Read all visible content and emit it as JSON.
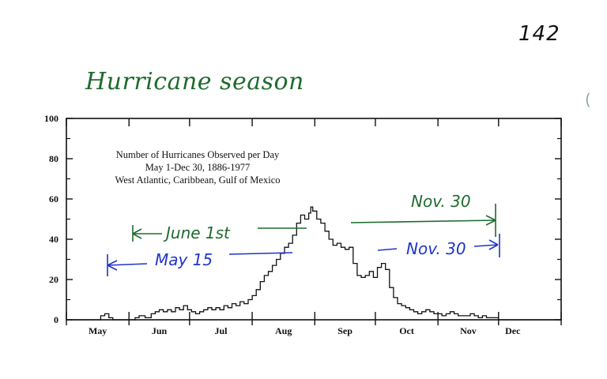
{
  "page_number": "142",
  "handwritten_title": "Hurricane season",
  "chart_data": {
    "type": "line",
    "title_lines": [
      "Number of Hurricanes Observed per Day",
      "May 1-Dec 30, 1886-1977",
      "West Atlantic, Caribbean, Gulf of Mexico"
    ],
    "xlabel": "",
    "ylabel": "",
    "x_start": "May 1",
    "x_unit": "day of season",
    "xlim": [
      0,
      245
    ],
    "ylim": [
      0,
      100
    ],
    "y_ticks": [
      0,
      20,
      40,
      60,
      80,
      100
    ],
    "y_tick_labels": [
      "0",
      "20",
      "40",
      "60",
      "80",
      "100"
    ],
    "month_labels": [
      "May",
      "Jun",
      "Jul",
      "Aug",
      "Sep",
      "Oct",
      "Nov",
      "Dec"
    ],
    "month_boundaries": [
      0,
      31,
      61,
      92,
      123,
      153,
      184,
      214,
      245
    ],
    "series": [
      {
        "name": "",
        "points": [
          [
            0,
            0
          ],
          [
            15,
            0
          ],
          [
            17,
            2
          ],
          [
            19,
            3
          ],
          [
            21,
            1
          ],
          [
            23,
            0
          ],
          [
            31,
            0
          ],
          [
            34,
            1
          ],
          [
            36,
            2
          ],
          [
            39,
            1
          ],
          [
            42,
            3
          ],
          [
            44,
            4
          ],
          [
            46,
            5
          ],
          [
            48,
            4
          ],
          [
            50,
            5
          ],
          [
            52,
            4
          ],
          [
            54,
            6
          ],
          [
            56,
            5
          ],
          [
            58,
            7
          ],
          [
            60,
            5
          ],
          [
            62,
            4
          ],
          [
            64,
            3
          ],
          [
            66,
            4
          ],
          [
            68,
            5
          ],
          [
            70,
            6
          ],
          [
            72,
            5
          ],
          [
            74,
            6
          ],
          [
            76,
            5
          ],
          [
            78,
            7
          ],
          [
            80,
            6
          ],
          [
            82,
            8
          ],
          [
            84,
            7
          ],
          [
            86,
            9
          ],
          [
            88,
            8
          ],
          [
            90,
            10
          ],
          [
            92,
            12
          ],
          [
            94,
            15
          ],
          [
            96,
            19
          ],
          [
            98,
            22
          ],
          [
            100,
            24
          ],
          [
            102,
            27
          ],
          [
            104,
            30
          ],
          [
            106,
            33
          ],
          [
            108,
            36
          ],
          [
            110,
            38
          ],
          [
            112,
            42
          ],
          [
            114,
            48
          ],
          [
            116,
            52
          ],
          [
            118,
            50
          ],
          [
            120,
            53
          ],
          [
            121,
            56
          ],
          [
            122,
            54
          ],
          [
            124,
            50
          ],
          [
            126,
            48
          ],
          [
            128,
            44
          ],
          [
            130,
            40
          ],
          [
            132,
            37
          ],
          [
            134,
            38
          ],
          [
            136,
            36
          ],
          [
            138,
            35
          ],
          [
            140,
            36
          ],
          [
            142,
            28
          ],
          [
            144,
            22
          ],
          [
            146,
            21
          ],
          [
            148,
            22
          ],
          [
            150,
            24
          ],
          [
            152,
            21
          ],
          [
            154,
            26
          ],
          [
            156,
            28
          ],
          [
            158,
            25
          ],
          [
            160,
            16
          ],
          [
            162,
            11
          ],
          [
            164,
            8
          ],
          [
            166,
            7
          ],
          [
            168,
            6
          ],
          [
            170,
            5
          ],
          [
            172,
            4
          ],
          [
            174,
            3
          ],
          [
            176,
            4
          ],
          [
            178,
            5
          ],
          [
            180,
            4
          ],
          [
            182,
            3
          ],
          [
            184,
            3
          ],
          [
            186,
            2
          ],
          [
            188,
            3
          ],
          [
            190,
            4
          ],
          [
            192,
            3
          ],
          [
            194,
            2
          ],
          [
            196,
            2
          ],
          [
            198,
            2
          ],
          [
            200,
            3
          ],
          [
            202,
            2
          ],
          [
            204,
            1
          ],
          [
            206,
            2
          ],
          [
            208,
            1
          ],
          [
            210,
            1
          ],
          [
            214,
            0
          ],
          [
            245,
            0
          ]
        ]
      }
    ],
    "grid": false
  },
  "annotations": {
    "june_first": {
      "text": "June 1st",
      "color": "#1f6b2e",
      "day": 31
    },
    "nov30_green": {
      "text": "Nov. 30",
      "color": "#1f6b2e",
      "day": 213
    },
    "may15": {
      "text": "May 15",
      "color": "#1f35c8",
      "day": 14
    },
    "nov30_blue": {
      "text": "Nov. 30",
      "color": "#1f35c8",
      "day": 213
    }
  }
}
